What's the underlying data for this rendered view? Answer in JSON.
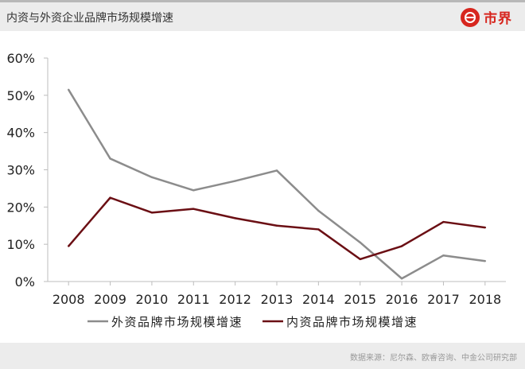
{
  "header": {
    "title": "内资与外资企业品牌市场规模增速"
  },
  "brand": {
    "name": "市界"
  },
  "footer": {
    "source": "数据来源：尼尔森、欧睿咨询、中金公司研究部"
  },
  "colors": {
    "series_foreign": "#8c8c8c",
    "series_domestic": "#6b0f14",
    "brand": "#d7261e",
    "header_bg": "#ececec"
  },
  "chart_data": {
    "type": "line",
    "title": "",
    "xlabel": "",
    "ylabel": "",
    "x": [
      "2008",
      "2009",
      "2010",
      "2011",
      "2012",
      "2013",
      "2014",
      "2015",
      "2016",
      "2017",
      "2018"
    ],
    "ylim": [
      0,
      60
    ],
    "yticks": [
      "0%",
      "10%",
      "20%",
      "30%",
      "40%",
      "50%",
      "60%"
    ],
    "grid": false,
    "legend_position": "bottom",
    "series": [
      {
        "name": "外资品牌市场规模增速",
        "values": [
          51.5,
          33,
          28,
          24.5,
          27,
          29.8,
          19,
          10.5,
          0.8,
          7,
          5.5
        ]
      },
      {
        "name": "内资品牌市场规模增速",
        "values": [
          9.5,
          22.5,
          18.5,
          19.5,
          17,
          15,
          14,
          6,
          9.5,
          16,
          14.5
        ]
      }
    ]
  }
}
